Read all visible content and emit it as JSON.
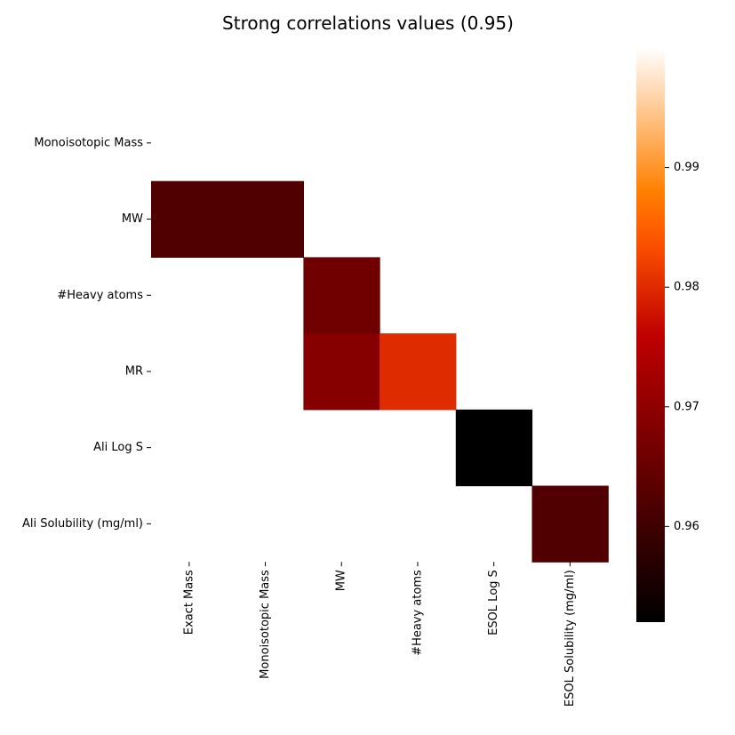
{
  "chart_data": {
    "type": "heatmap",
    "title": "Strong correlations values (0.95)",
    "xlabel": "",
    "ylabel": "",
    "x_labels": [
      "Exact Mass",
      "Monoisotopic Mass",
      "MW",
      "#Heavy atoms",
      "ESOL Log S",
      "ESOL Solubility (mg/ml)"
    ],
    "y_labels": [
      "Monoisotopic Mass",
      "MW",
      "#Heavy atoms",
      "MR",
      "Ali Log S",
      "Ali Solubility (mg/ml)"
    ],
    "cells": [
      {
        "row": 1,
        "col": 0,
        "value": 0.962
      },
      {
        "row": 1,
        "col": 1,
        "value": 0.962
      },
      {
        "row": 2,
        "col": 2,
        "value": 0.966
      },
      {
        "row": 3,
        "col": 2,
        "value": 0.969
      },
      {
        "row": 3,
        "col": 3,
        "value": 0.98
      },
      {
        "row": 4,
        "col": 4,
        "value": 0.952
      },
      {
        "row": 5,
        "col": 5,
        "value": 0.962
      }
    ],
    "colormap": "gist_heat",
    "colorbar": {
      "min": 0.952,
      "max": 1.0,
      "ticks": [
        0.96,
        0.97,
        0.98,
        0.99
      ],
      "tick_labels": [
        "0.96",
        "0.97",
        "0.98",
        "0.99"
      ]
    },
    "grid": false,
    "legend": "colorbar-right"
  }
}
